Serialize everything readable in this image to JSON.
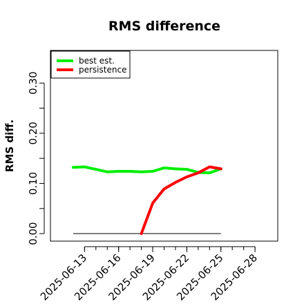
{
  "chart_data": {
    "type": "line",
    "title": "RMS difference",
    "xlabel": "",
    "ylabel": "RMS diff.",
    "x_tick_labels": [
      "2025-06-13",
      "2025-06-16",
      "2025-06-19",
      "2025-06-22",
      "2025-06-25",
      "2025-06-28"
    ],
    "y_tick_labels": [
      "0.00",
      "0.10",
      "0.20",
      "0.30"
    ],
    "xlim": [
      "2025-06-10",
      "2025-06-30"
    ],
    "ylim": [
      -0.015,
      0.365
    ],
    "legend_position": "top-left",
    "baseline": {
      "y": 0.0,
      "x": [
        "2025-06-12",
        "2025-06-25"
      ],
      "color": "#555555"
    },
    "series": [
      {
        "name": "best est.",
        "color": "#00ee00",
        "x": [
          "2025-06-12",
          "2025-06-13",
          "2025-06-14",
          "2025-06-15",
          "2025-06-16",
          "2025-06-17",
          "2025-06-18",
          "2025-06-19",
          "2025-06-20",
          "2025-06-21",
          "2025-06-22",
          "2025-06-23",
          "2025-06-24",
          "2025-06-25"
        ],
        "values": [
          0.132,
          0.133,
          0.128,
          0.123,
          0.124,
          0.124,
          0.123,
          0.124,
          0.131,
          0.129,
          0.128,
          0.122,
          0.121,
          0.129
        ]
      },
      {
        "name": "persistence",
        "color": "#ff0000",
        "x": [
          "2025-06-18",
          "2025-06-19",
          "2025-06-20",
          "2025-06-21",
          "2025-06-22",
          "2025-06-23",
          "2025-06-24",
          "2025-06-25"
        ],
        "values": [
          0.0,
          0.061,
          0.089,
          0.102,
          0.113,
          0.121,
          0.133,
          0.129
        ]
      }
    ]
  }
}
